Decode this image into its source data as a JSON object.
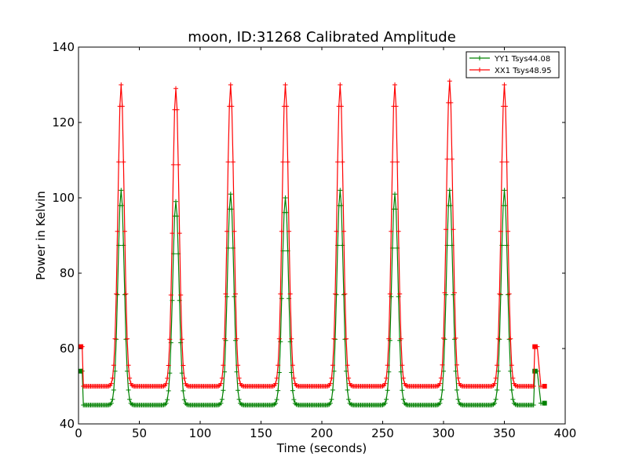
{
  "chart_data": {
    "type": "line",
    "title": "moon, ID:31268 Calibrated Amplitude",
    "xlabel": "Time (seconds)",
    "ylabel": "Power in Kelvin",
    "xlim": [
      0,
      400
    ],
    "ylim": [
      40,
      140
    ],
    "xticks": [
      0,
      50,
      100,
      150,
      200,
      250,
      300,
      350,
      400
    ],
    "yticks": [
      40,
      60,
      80,
      100,
      120,
      140
    ],
    "grid": false,
    "legend_position": "top-right",
    "peak_centers": [
      35,
      80,
      125,
      170,
      215,
      260,
      305,
      350
    ],
    "series": [
      {
        "name": "YY1 Tsys44.08",
        "color": "#008000",
        "marker": "+",
        "start": {
          "x": [
            2,
            3
          ],
          "y": [
            54,
            54
          ]
        },
        "baseline": 45,
        "peak_values": [
          102,
          99,
          101,
          100,
          102,
          101,
          102,
          102
        ],
        "end": {
          "x": [
            375,
            377,
            380,
            383
          ],
          "y": [
            54,
            54,
            45.5,
            45.5
          ]
        }
      },
      {
        "name": "XX1 Tsys48.95",
        "color": "#ff0000",
        "marker": "+",
        "start": {
          "x": [
            2,
            3
          ],
          "y": [
            60.5,
            60.5
          ]
        },
        "baseline": 50,
        "peak_values": [
          130,
          129,
          130,
          130,
          130,
          130,
          131,
          130
        ],
        "end": {
          "x": [
            375,
            377,
            380,
            383
          ],
          "y": [
            60.5,
            60.5,
            50,
            50
          ]
        }
      }
    ]
  }
}
